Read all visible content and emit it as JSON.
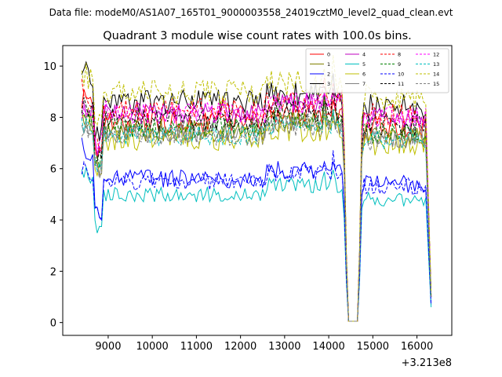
{
  "chart_data": {
    "type": "line",
    "suptitle": "Data file: modeM0/AS1A07_165T01_9000003558_24019cztM0_level2_quad_clean.evt",
    "title": "Quadrant 3 module wise count rates with 100.0s bins.",
    "xlabel": "",
    "ylabel": "",
    "x_offset_label": "+3.213e8",
    "xlim": [
      7970,
      16790
    ],
    "ylim": [
      -0.5,
      10.8
    ],
    "x_ticks": [
      9000,
      10000,
      11000,
      12000,
      13000,
      14000,
      15000,
      16000
    ],
    "x_tick_labels": [
      "9000",
      "10000",
      "11000",
      "12000",
      "13000",
      "14000",
      "15000",
      "16000"
    ],
    "y_ticks": [
      0,
      2,
      4,
      6,
      8,
      10
    ],
    "y_tick_labels": [
      "0",
      "2",
      "4",
      "6",
      "8",
      "10"
    ],
    "grid": false,
    "legend_position": "top-right",
    "legend_columns": 4,
    "gap_profile": {
      "dip_start": 14330,
      "dip_floor_start": 14430,
      "dip_floor_end": 14670,
      "dip_end": 14760,
      "end_start": 16240,
      "end_time": 16320,
      "spike_times": [
        13900,
        14120
      ]
    },
    "series": [
      {
        "name": "0",
        "color": "#ff0000",
        "dash": false,
        "start": 8.8,
        "level": 7.8,
        "amp": 0.45,
        "end": 1.0,
        "dip": 0.05,
        "seed": 11
      },
      {
        "name": "1",
        "color": "#808000",
        "dash": false,
        "start": 8.0,
        "level": 7.5,
        "amp": 0.45,
        "end": 1.2,
        "dip": 0.05,
        "seed": 23
      },
      {
        "name": "2",
        "color": "#0000ff",
        "dash": false,
        "start": 7.0,
        "level": 5.6,
        "amp": 0.35,
        "end": 0.7,
        "dip": 0.05,
        "seed": 37
      },
      {
        "name": "3",
        "color": "#000000",
        "dash": false,
        "start": 10.1,
        "level": 8.6,
        "amp": 0.5,
        "end": 1.0,
        "dip": 0.05,
        "seed": 41
      },
      {
        "name": "4",
        "color": "#bf00bf",
        "dash": false,
        "start": 8.3,
        "level": 8.2,
        "amp": 0.4,
        "end": 1.0,
        "dip": 0.05,
        "seed": 53
      },
      {
        "name": "5",
        "color": "#00bfbf",
        "dash": false,
        "start": 6.0,
        "level": 5.0,
        "amp": 0.3,
        "end": 0.6,
        "dip": 0.05,
        "seed": 61
      },
      {
        "name": "6",
        "color": "#bfbf00",
        "dash": false,
        "start": 8.2,
        "level": 7.2,
        "amp": 0.5,
        "end": 1.0,
        "dip": 0.05,
        "seed": 73
      },
      {
        "name": "7",
        "color": "#808080",
        "dash": false,
        "start": 7.8,
        "level": 7.4,
        "amp": 0.4,
        "end": 1.0,
        "dip": 0.05,
        "seed": 89
      },
      {
        "name": "8",
        "color": "#ff0000",
        "dash": true,
        "start": 9.1,
        "level": 8.3,
        "amp": 0.45,
        "end": 1.0,
        "dip": 0.05,
        "seed": 97
      },
      {
        "name": "9",
        "color": "#008000",
        "dash": true,
        "start": 8.3,
        "level": 7.6,
        "amp": 0.4,
        "end": 1.0,
        "dip": 0.05,
        "seed": 101
      },
      {
        "name": "10",
        "color": "#0000ff",
        "dash": true,
        "start": 6.1,
        "level": 5.5,
        "amp": 0.35,
        "end": 0.7,
        "dip": 0.05,
        "seed": 113
      },
      {
        "name": "11",
        "color": "#000000",
        "dash": true,
        "start": 8.6,
        "level": 7.9,
        "amp": 0.45,
        "end": 1.0,
        "dip": 0.05,
        "seed": 127
      },
      {
        "name": "12",
        "color": "#ff00ff",
        "dash": true,
        "start": 8.1,
        "level": 8.2,
        "amp": 0.45,
        "end": 1.0,
        "dip": 0.05,
        "seed": 131
      },
      {
        "name": "13",
        "color": "#00bfbf",
        "dash": true,
        "start": 7.7,
        "level": 7.3,
        "amp": 0.4,
        "end": 1.0,
        "dip": 0.05,
        "seed": 139
      },
      {
        "name": "14",
        "color": "#bfbf00",
        "dash": true,
        "start": 9.8,
        "level": 9.0,
        "amp": 0.5,
        "end": 1.2,
        "dip": 0.05,
        "seed": 149
      },
      {
        "name": "15",
        "color": "#808080",
        "dash": true,
        "start": 7.6,
        "level": 7.3,
        "amp": 0.4,
        "end": 1.0,
        "dip": 0.05,
        "seed": 157
      }
    ]
  }
}
